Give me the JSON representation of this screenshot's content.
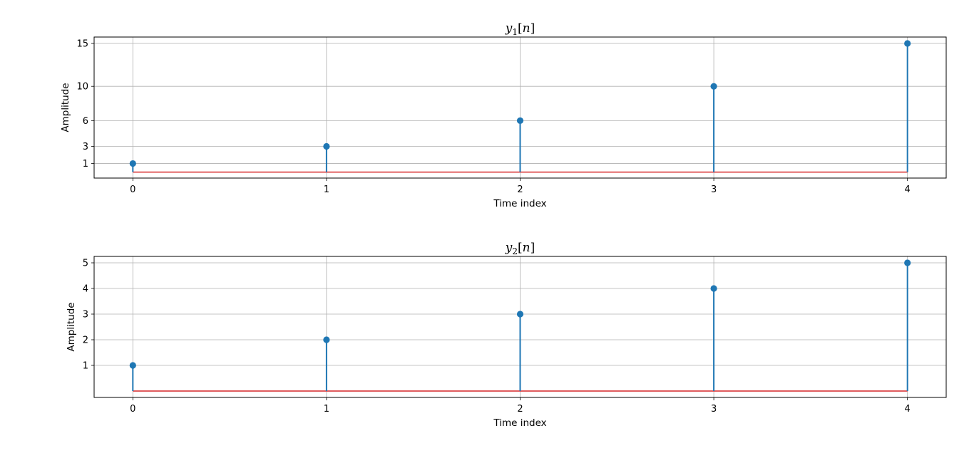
{
  "chart_data": [
    {
      "type": "stem",
      "title_base": "y",
      "title_sub": "1",
      "title_open": "[",
      "title_var": "n",
      "title_close": "]",
      "xlabel": "Time index",
      "ylabel": "Amplitude",
      "x": [
        0,
        1,
        2,
        3,
        4
      ],
      "values": [
        1,
        3,
        6,
        10,
        15
      ],
      "xticks": [
        0,
        1,
        2,
        3,
        4
      ],
      "yticks": [
        1,
        3,
        6,
        10,
        15
      ],
      "xlim": [
        -0.2,
        4.2
      ],
      "ylim": [
        -0.7,
        15.75
      ],
      "baseline": 0,
      "grid": true,
      "marker_color": "#1f77b4",
      "baseline_color": "#d62728"
    },
    {
      "type": "stem",
      "title_base": "y",
      "title_sub": "2",
      "title_open": "[",
      "title_var": "n",
      "title_close": "]",
      "xlabel": "Time index",
      "ylabel": "Amplitude",
      "x": [
        0,
        1,
        2,
        3,
        4
      ],
      "values": [
        1,
        2,
        3,
        4,
        5
      ],
      "xticks": [
        0,
        1,
        2,
        3,
        4
      ],
      "yticks": [
        1,
        2,
        3,
        4,
        5
      ],
      "xlim": [
        -0.2,
        4.2
      ],
      "ylim": [
        -0.25,
        5.25
      ],
      "baseline": 0,
      "grid": true,
      "marker_color": "#1f77b4",
      "baseline_color": "#d62728"
    }
  ]
}
